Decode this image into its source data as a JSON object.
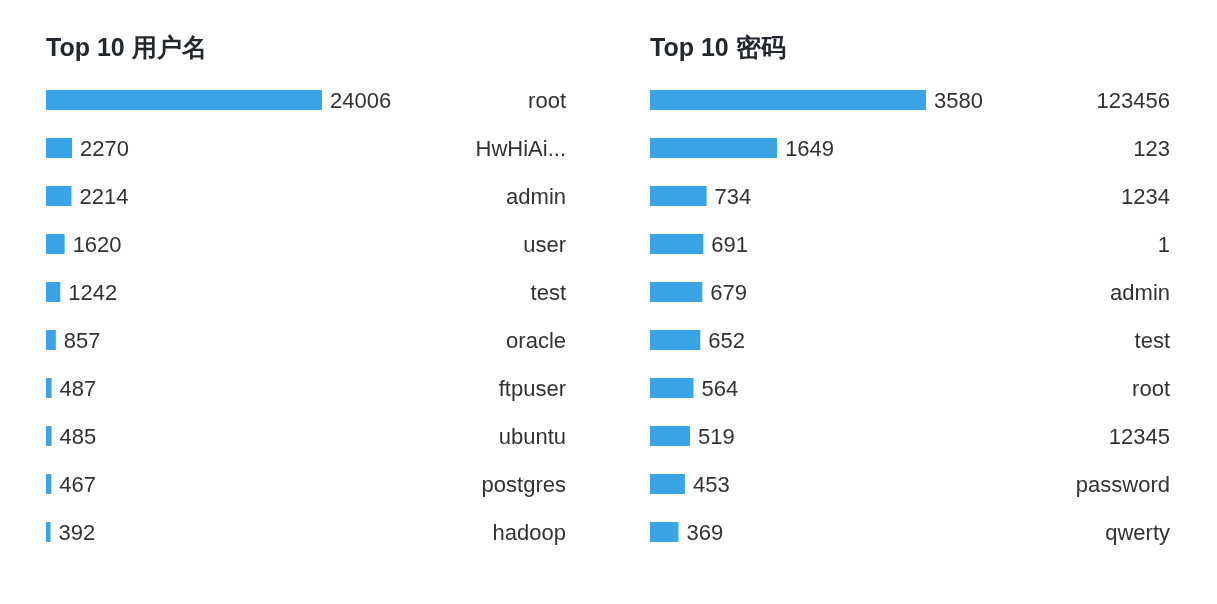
{
  "chart_data": [
    {
      "type": "bar",
      "orientation": "horizontal",
      "title": "Top 10 用户名",
      "categories": [
        "root",
        "HwHiAi...",
        "admin",
        "user",
        "test",
        "oracle",
        "ftpuser",
        "ubuntu",
        "postgres",
        "hadoop"
      ],
      "values": [
        24006,
        2270,
        2214,
        1620,
        1242,
        857,
        487,
        485,
        467,
        392
      ],
      "color": "#39a5e5",
      "data_labels": true
    },
    {
      "type": "bar",
      "orientation": "horizontal",
      "title": "Top 10 密码",
      "categories": [
        "123456",
        "123",
        "1234",
        "1",
        "admin",
        "test",
        "root",
        "12345",
        "password",
        "qwerty"
      ],
      "values": [
        3580,
        1649,
        734,
        691,
        679,
        652,
        564,
        519,
        453,
        369
      ],
      "color": "#39a5e5",
      "data_labels": true
    }
  ]
}
